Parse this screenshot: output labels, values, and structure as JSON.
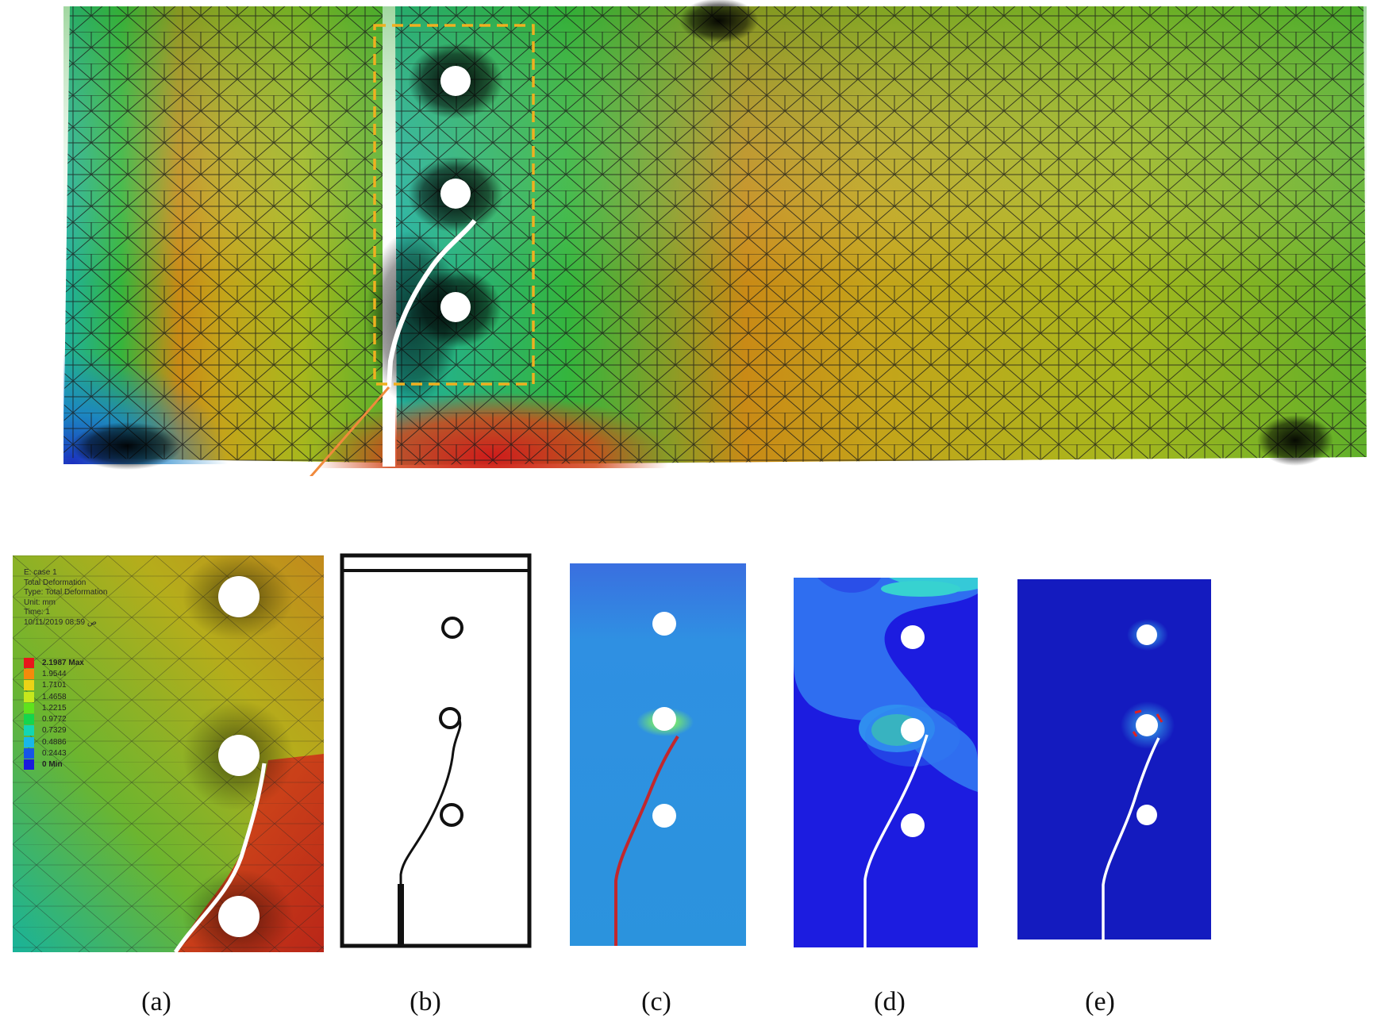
{
  "figure": {
    "captions": [
      "(a)",
      "(b)",
      "(c)",
      "(d)",
      "(e)"
    ],
    "caption_letters": [
      "a",
      "b",
      "c",
      "d",
      "e"
    ]
  },
  "result_header": {
    "lines": [
      "E: case 1",
      "Total Deformation",
      "Type: Total Deformation",
      "Unit: mm",
      "Time: 1",
      "10/11/2019 08:59 ص"
    ]
  },
  "legend": {
    "entries": [
      {
        "label": "2.1987 Max",
        "color": "#e8151b",
        "strong": true
      },
      {
        "label": "1.9544",
        "color": "#f58a0b",
        "strong": false
      },
      {
        "label": "1.7101",
        "color": "#ecd316",
        "strong": false
      },
      {
        "label": "1.4658",
        "color": "#c6e81c",
        "strong": false
      },
      {
        "label": "1.2215",
        "color": "#5fe21d",
        "strong": false
      },
      {
        "label": "0.9772",
        "color": "#14d64c",
        "strong": false
      },
      {
        "label": "0.7329",
        "color": "#12d6b4",
        "strong": false
      },
      {
        "label": "0.4886",
        "color": "#18b7ea",
        "strong": false
      },
      {
        "label": "0.2443",
        "color": "#1655e8",
        "strong": false
      },
      {
        "label": "0 Min",
        "color": "#1a1adc",
        "strong": true
      }
    ]
  },
  "colors": {
    "highlight_box": "#f0b020",
    "arrow": "#f08a3c",
    "crack_path_c": "#c1272d",
    "contour_c_bg": "#2f8de0",
    "contour_d_bg": "#1c1ce0",
    "contour_e_bg": "#141bbf"
  }
}
